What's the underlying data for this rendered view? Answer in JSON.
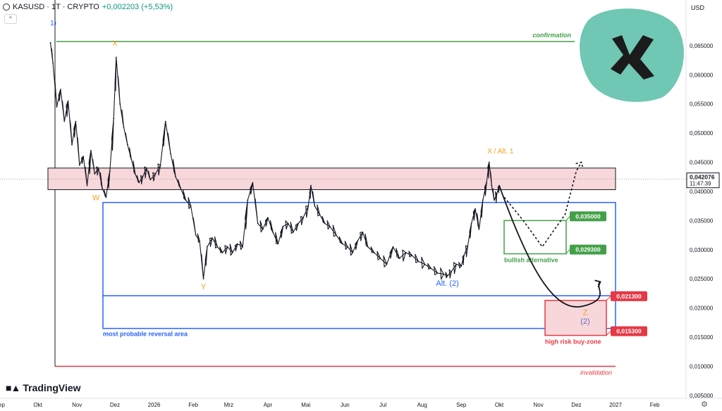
{
  "header": {
    "symbol": "KASUSD · 1T · CRYPTO",
    "price_change": "+0,002203 (+5,53%)",
    "currency": "USD"
  },
  "branding": {
    "logo_text": "TradingView",
    "logo_icon": "tradingview-mark-icon"
  },
  "colors": {
    "price": "#131722",
    "resistance_fill": "#f8d7da",
    "blue_box": "#2962ff",
    "green": "#43a047",
    "red": "#e53945",
    "orange": "#f4a019",
    "wave_blue": "#2962ff",
    "kaspa_logo_bg": "#6fc7b4"
  },
  "chart_data": {
    "type": "line",
    "title": "",
    "xlabel": "",
    "ylabel": "",
    "ylim": [
      0.0045,
      0.0705
    ],
    "current_price": "0,042076",
    "countdown": "11:47:39",
    "y_ticks": [
      "0,065000",
      "0,060000",
      "0,055000",
      "0,050000",
      "0,045000",
      "0,040000",
      "0,035000",
      "0,030000",
      "0,025000",
      "0,020000",
      "0,015000",
      "0,010000",
      "0,005000"
    ],
    "y_tick_values": [
      0.065,
      0.06,
      0.055,
      0.05,
      0.045,
      0.04,
      0.035,
      0.03,
      0.025,
      0.02,
      0.015,
      0.01,
      0.005
    ],
    "x_ticks": [
      "Sep",
      "Okt",
      "Nov",
      "Dez",
      "2026",
      "Feb",
      "Mrz",
      "Apr",
      "Mai",
      "Jun",
      "Jul",
      "Aug",
      "Sep",
      "Okt",
      "Nov",
      "Dez",
      "2027",
      "Feb"
    ],
    "x_tick_dates": [
      "2025-09-01",
      "2025-10-01",
      "2025-11-01",
      "2025-12-01",
      "2026-01-01",
      "2026-02-01",
      "2026-03-01",
      "2026-04-01",
      "2026-05-01",
      "2026-06-01",
      "2026-07-01",
      "2026-08-01",
      "2026-09-01",
      "2026-10-01",
      "2026-11-01",
      "2026-12-01",
      "2027-01-01",
      "2027-02-01"
    ],
    "series": [
      {
        "points": [
          [
            "2025-10-11",
            0.0655
          ],
          [
            "2025-10-13",
            0.062
          ],
          [
            "2025-10-16",
            0.0545
          ],
          [
            "2025-10-19",
            0.0575
          ],
          [
            "2025-10-22",
            0.052
          ],
          [
            "2025-10-25",
            0.0555
          ],
          [
            "2025-10-28",
            0.048
          ],
          [
            "2025-10-31",
            0.052
          ],
          [
            "2025-11-03",
            0.0445
          ],
          [
            "2025-11-06",
            0.046
          ],
          [
            "2025-11-09",
            0.041
          ],
          [
            "2025-11-12",
            0.047
          ],
          [
            "2025-11-15",
            0.043
          ],
          [
            "2025-11-18",
            0.044
          ],
          [
            "2025-11-21",
            0.0405
          ],
          [
            "2025-11-24",
            0.039
          ],
          [
            "2025-11-27",
            0.0435
          ],
          [
            "2025-11-30",
            0.0525
          ],
          [
            "2025-12-02",
            0.063
          ],
          [
            "2025-12-05",
            0.055
          ],
          [
            "2025-12-08",
            0.051
          ],
          [
            "2025-12-11",
            0.048
          ],
          [
            "2025-12-14",
            0.0455
          ],
          [
            "2025-12-17",
            0.043
          ],
          [
            "2025-12-20",
            0.0415
          ],
          [
            "2025-12-23",
            0.0425
          ],
          [
            "2025-12-26",
            0.044
          ],
          [
            "2025-12-29",
            0.042
          ],
          [
            "2026-01-02",
            0.043
          ],
          [
            "2026-01-06",
            0.0445
          ],
          [
            "2026-01-10",
            0.052
          ],
          [
            "2026-01-14",
            0.0465
          ],
          [
            "2026-01-18",
            0.0425
          ],
          [
            "2026-01-22",
            0.0405
          ],
          [
            "2026-01-26",
            0.0385
          ],
          [
            "2026-01-30",
            0.0375
          ],
          [
            "2026-02-03",
            0.0325
          ],
          [
            "2026-02-06",
            0.0315
          ],
          [
            "2026-02-09",
            0.025
          ],
          [
            "2026-02-12",
            0.0305
          ],
          [
            "2026-02-16",
            0.032
          ],
          [
            "2026-02-20",
            0.0305
          ],
          [
            "2026-02-24",
            0.0295
          ],
          [
            "2026-02-28",
            0.0305
          ],
          [
            "2026-03-04",
            0.0295
          ],
          [
            "2026-03-08",
            0.031
          ],
          [
            "2026-03-12",
            0.0305
          ],
          [
            "2026-03-16",
            0.0385
          ],
          [
            "2026-03-20",
            0.0415
          ],
          [
            "2026-03-24",
            0.0345
          ],
          [
            "2026-03-28",
            0.0335
          ],
          [
            "2026-04-01",
            0.0355
          ],
          [
            "2026-04-05",
            0.033
          ],
          [
            "2026-04-09",
            0.031
          ],
          [
            "2026-04-13",
            0.034
          ],
          [
            "2026-04-17",
            0.0345
          ],
          [
            "2026-04-21",
            0.033
          ],
          [
            "2026-04-25",
            0.0345
          ],
          [
            "2026-04-29",
            0.0355
          ],
          [
            "2026-05-03",
            0.0375
          ],
          [
            "2026-05-05",
            0.041
          ],
          [
            "2026-05-08",
            0.0375
          ],
          [
            "2026-05-12",
            0.036
          ],
          [
            "2026-05-16",
            0.0345
          ],
          [
            "2026-05-20",
            0.034
          ],
          [
            "2026-05-25",
            0.0325
          ],
          [
            "2026-05-30",
            0.031
          ],
          [
            "2026-06-03",
            0.0305
          ],
          [
            "2026-06-07",
            0.0295
          ],
          [
            "2026-06-11",
            0.0315
          ],
          [
            "2026-06-15",
            0.033
          ],
          [
            "2026-06-19",
            0.0305
          ],
          [
            "2026-06-24",
            0.0295
          ],
          [
            "2026-06-29",
            0.0285
          ],
          [
            "2026-07-04",
            0.0275
          ],
          [
            "2026-07-09",
            0.0305
          ],
          [
            "2026-07-14",
            0.0285
          ],
          [
            "2026-07-19",
            0.0295
          ],
          [
            "2026-07-24",
            0.029
          ],
          [
            "2026-07-29",
            0.028
          ],
          [
            "2026-08-03",
            0.0275
          ],
          [
            "2026-08-08",
            0.0268
          ],
          [
            "2026-08-13",
            0.026
          ],
          [
            "2026-08-18",
            0.0258
          ],
          [
            "2026-08-21",
            0.0255
          ],
          [
            "2026-08-24",
            0.0262
          ],
          [
            "2026-08-28",
            0.0275
          ],
          [
            "2026-09-01",
            0.0272
          ],
          [
            "2026-09-03",
            0.029
          ],
          [
            "2026-09-06",
            0.0305
          ],
          [
            "2026-09-09",
            0.0345
          ],
          [
            "2026-09-12",
            0.037
          ],
          [
            "2026-09-15",
            0.0335
          ],
          [
            "2026-09-18",
            0.0385
          ],
          [
            "2026-09-21",
            0.0415
          ],
          [
            "2026-09-23",
            0.045
          ],
          [
            "2026-09-25",
            0.041
          ],
          [
            "2026-09-27",
            0.0385
          ],
          [
            "2026-09-29",
            0.0395
          ],
          [
            "2026-10-01",
            0.041
          ]
        ]
      }
    ],
    "zones": {
      "resistance_band": [
        0.0403,
        0.044
      ],
      "blue_box_top": 0.0381,
      "blue_box_bottom": 0.0221,
      "lower_box_bottom": 0.0165,
      "bullish_box": [
        0.0293,
        0.035
      ],
      "buy_zone": [
        0.0153,
        0.0213
      ],
      "confirmation_level": 0.0657,
      "invalidation_level": 0.01
    },
    "price_tags": [
      {
        "label": "0,035000",
        "value": 0.035,
        "color": "#43a047"
      },
      {
        "label": "0,029300",
        "value": 0.0293,
        "color": "#43a047"
      },
      {
        "label": "0,021300",
        "value": 0.0213,
        "color": "#e53945"
      },
      {
        "label": "0,015300",
        "value": 0.0153,
        "color": "#e53945"
      }
    ],
    "projection": {
      "main_path": [
        [
          "2026-10-01",
          0.041
        ],
        [
          "2026-10-20",
          0.03
        ],
        [
          "2026-11-18",
          0.0215
        ],
        [
          "2026-12-06",
          0.0203
        ],
        [
          "2026-12-20",
          0.0245
        ]
      ],
      "alt_path": [
        [
          "2026-10-05",
          0.039
        ],
        [
          "2026-10-20",
          0.035
        ],
        [
          "2026-11-04",
          0.0305
        ],
        [
          "2026-11-22",
          0.036
        ],
        [
          "2026-12-01",
          0.0435
        ],
        [
          "2026-12-05",
          0.045
        ]
      ]
    },
    "annotations": {
      "wave_1": "1)",
      "wave_x1": "X",
      "wave_w": "W",
      "wave_y": "Y",
      "wave_x2": "X  / Alt. 1",
      "alt_2": "Alt. (2)",
      "z_label": "Z",
      "wave_2": "(2)",
      "confirmation": "confirmation",
      "invalidation": "invalidation",
      "reversal_area": "most probable reversal area",
      "bullish_alternative": "bullish alternative",
      "buy_zone": "high risk buy-zone"
    }
  }
}
